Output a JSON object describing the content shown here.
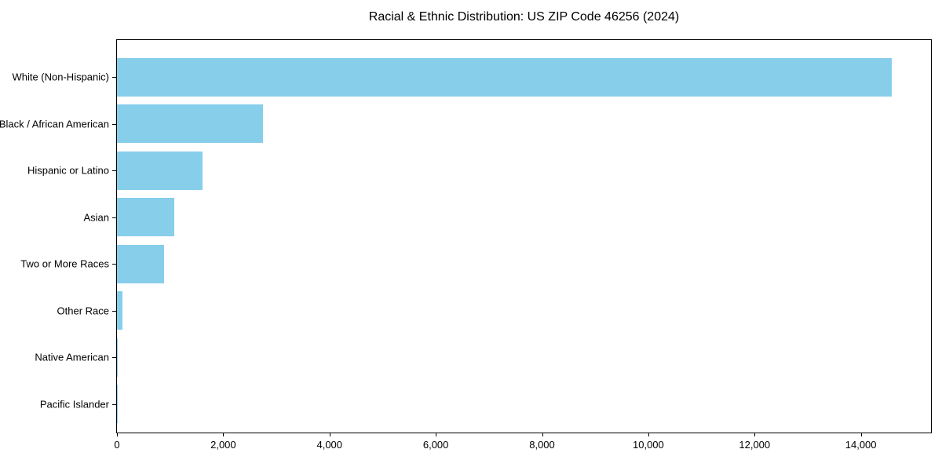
{
  "chart_data": {
    "type": "bar",
    "orientation": "horizontal",
    "title": "Racial & Ethnic Distribution: US ZIP Code 46256 (2024)",
    "categories": [
      "White (Non-Hispanic)",
      "Black / African American",
      "Hispanic or Latino",
      "Asian",
      "Two or More Races",
      "Other Race",
      "Native American",
      "Pacific Islander"
    ],
    "values": [
      14575,
      2750,
      1610,
      1075,
      885,
      100,
      15,
      5
    ],
    "xlabel": "",
    "ylabel": "",
    "xlim": [
      0,
      15320
    ],
    "xticks": [
      0,
      2000,
      4000,
      6000,
      8000,
      10000,
      12000,
      14000
    ],
    "xtick_labels": [
      "0",
      "2,000",
      "4,000",
      "6,000",
      "8,000",
      "10,000",
      "12,000",
      "14,000"
    ],
    "bar_color": "#87CEEB",
    "axis_color": "#000000",
    "grid": false,
    "legend": "none"
  }
}
